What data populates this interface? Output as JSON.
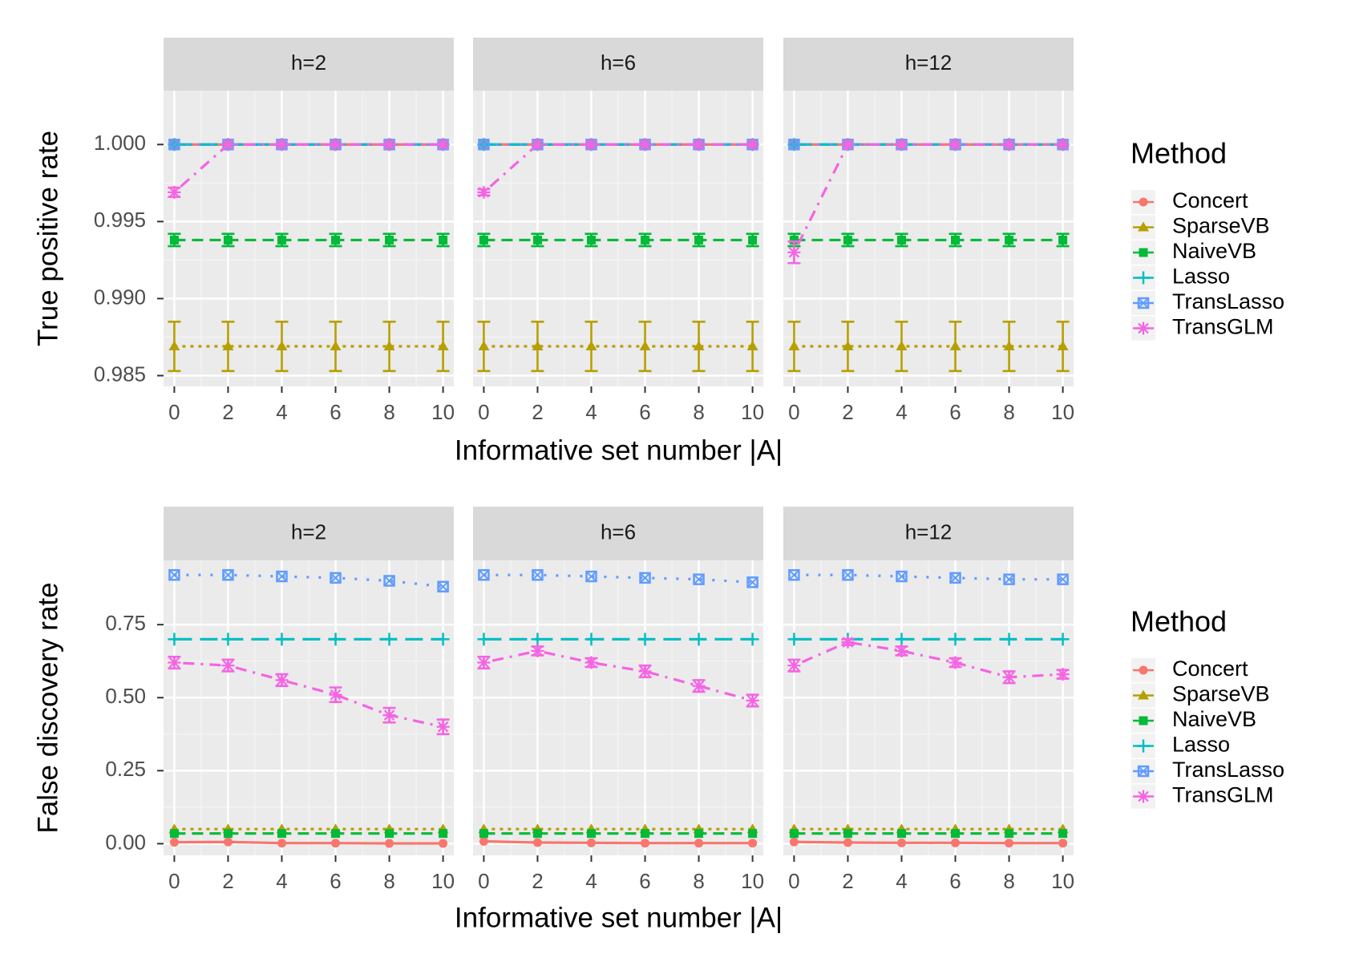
{
  "chart_data": {
    "type": "line",
    "x": [
      0,
      2,
      4,
      6,
      8,
      10
    ],
    "xticks": [
      "0",
      "2",
      "4",
      "6",
      "8",
      "10"
    ],
    "xlabel": "Informative set number |A|",
    "facets": [
      "h=2",
      "h=6",
      "h=12"
    ],
    "methods": [
      {
        "name": "Concert",
        "color": "#F8766D",
        "shape": "circle",
        "dash": "solid"
      },
      {
        "name": "SparseVB",
        "color": "#B79F00",
        "shape": "triangle",
        "dash": "dotted"
      },
      {
        "name": "NaiveVB",
        "color": "#00BA38",
        "shape": "square",
        "dash": "dashed"
      },
      {
        "name": "Lasso",
        "color": "#00BFC4",
        "shape": "plus",
        "dash": "longdash"
      },
      {
        "name": "TransLasso",
        "color": "#619CFF",
        "shape": "boxx",
        "dash": "dotted-wide"
      },
      {
        "name": "TransGLM",
        "color": "#F564E3",
        "shape": "asterisk",
        "dash": "dotdash"
      }
    ],
    "panels": [
      {
        "ylabel": "True positive rate",
        "ylim": [
          0.9843,
          1.0035
        ],
        "yticks": [
          0.985,
          0.99,
          0.995,
          1.0
        ],
        "yticklabels": [
          "0.985",
          "0.990",
          "0.995",
          "1.000"
        ],
        "legend_title": "Method",
        "facet_series": [
          {
            "facet": "h=2",
            "series": [
              {
                "method": "Concert",
                "values": [
                  1.0,
                  1.0,
                  1.0,
                  1.0,
                  1.0,
                  1.0
                ]
              },
              {
                "method": "SparseVB",
                "values": [
                  0.9869,
                  0.9869,
                  0.9869,
                  0.9869,
                  0.9869,
                  0.9869
                ],
                "err": [
                  0.0016,
                  0.0016,
                  0.0016,
                  0.0016,
                  0.0016,
                  0.0016
                ]
              },
              {
                "method": "NaiveVB",
                "values": [
                  0.9938,
                  0.9938,
                  0.9938,
                  0.9938,
                  0.9938,
                  0.9938
                ],
                "err": [
                  0.0004,
                  0.0004,
                  0.0004,
                  0.0004,
                  0.0004,
                  0.0004
                ]
              },
              {
                "method": "Lasso",
                "values": [
                  1.0,
                  1.0,
                  1.0,
                  1.0,
                  1.0,
                  1.0
                ]
              },
              {
                "method": "TransLasso",
                "values": [
                  1.0,
                  1.0,
                  1.0,
                  1.0,
                  1.0,
                  1.0
                ]
              },
              {
                "method": "TransGLM",
                "values": [
                  0.9969,
                  1.0,
                  1.0,
                  1.0,
                  1.0,
                  1.0
                ],
                "err": [
                  0.0003,
                  0,
                  0,
                  0,
                  0,
                  0
                ]
              }
            ]
          },
          {
            "facet": "h=6",
            "series": [
              {
                "method": "Concert",
                "values": [
                  1.0,
                  1.0,
                  1.0,
                  1.0,
                  1.0,
                  1.0
                ]
              },
              {
                "method": "SparseVB",
                "values": [
                  0.9869,
                  0.9869,
                  0.9869,
                  0.9869,
                  0.9869,
                  0.9869
                ],
                "err": [
                  0.0016,
                  0.0016,
                  0.0016,
                  0.0016,
                  0.0016,
                  0.0016
                ]
              },
              {
                "method": "NaiveVB",
                "values": [
                  0.9938,
                  0.9938,
                  0.9938,
                  0.9938,
                  0.9938,
                  0.9938
                ],
                "err": [
                  0.0004,
                  0.0004,
                  0.0004,
                  0.0004,
                  0.0004,
                  0.0004
                ]
              },
              {
                "method": "Lasso",
                "values": [
                  1.0,
                  1.0,
                  1.0,
                  1.0,
                  1.0,
                  1.0
                ]
              },
              {
                "method": "TransLasso",
                "values": [
                  1.0,
                  1.0,
                  1.0,
                  1.0,
                  1.0,
                  1.0
                ]
              },
              {
                "method": "TransGLM",
                "values": [
                  0.9969,
                  1.0,
                  1.0,
                  1.0,
                  1.0,
                  1.0
                ],
                "err": [
                  0.0002,
                  0,
                  0,
                  0,
                  0,
                  0
                ]
              }
            ]
          },
          {
            "facet": "h=12",
            "series": [
              {
                "method": "Concert",
                "values": [
                  1.0,
                  1.0,
                  1.0,
                  1.0,
                  1.0,
                  1.0
                ]
              },
              {
                "method": "SparseVB",
                "values": [
                  0.9869,
                  0.9869,
                  0.9869,
                  0.9869,
                  0.9869,
                  0.9869
                ],
                "err": [
                  0.0016,
                  0.0016,
                  0.0016,
                  0.0016,
                  0.0016,
                  0.0016
                ]
              },
              {
                "method": "NaiveVB",
                "values": [
                  0.9938,
                  0.9938,
                  0.9938,
                  0.9938,
                  0.9938,
                  0.9938
                ],
                "err": [
                  0.0004,
                  0.0004,
                  0.0004,
                  0.0004,
                  0.0004,
                  0.0004
                ]
              },
              {
                "method": "Lasso",
                "values": [
                  1.0,
                  1.0,
                  1.0,
                  1.0,
                  1.0,
                  1.0
                ]
              },
              {
                "method": "TransLasso",
                "values": [
                  1.0,
                  1.0,
                  1.0,
                  1.0,
                  1.0,
                  1.0
                ]
              },
              {
                "method": "TransGLM",
                "values": [
                  0.993,
                  1.0,
                  1.0,
                  1.0,
                  1.0,
                  1.0
                ],
                "err": [
                  0.0007,
                  0,
                  0,
                  0,
                  0,
                  0
                ]
              }
            ]
          }
        ]
      },
      {
        "ylabel": "False discovery rate",
        "ylim": [
          -0.04,
          0.97
        ],
        "yticks": [
          0.0,
          0.25,
          0.5,
          0.75
        ],
        "yticklabels": [
          "0.00",
          "0.25",
          "0.50",
          "0.75"
        ],
        "legend_title": "Method",
        "facet_series": [
          {
            "facet": "h=2",
            "series": [
              {
                "method": "Concert",
                "values": [
                  0.005,
                  0.006,
                  0.002,
                  0.002,
                  0.001,
                  0.001
                ]
              },
              {
                "method": "SparseVB",
                "values": [
                  0.05,
                  0.05,
                  0.05,
                  0.05,
                  0.05,
                  0.05
                ]
              },
              {
                "method": "NaiveVB",
                "values": [
                  0.035,
                  0.035,
                  0.035,
                  0.035,
                  0.035,
                  0.035
                ]
              },
              {
                "method": "Lasso",
                "values": [
                  0.7,
                  0.7,
                  0.7,
                  0.7,
                  0.7,
                  0.7
                ]
              },
              {
                "method": "TransLasso",
                "values": [
                  0.92,
                  0.92,
                  0.915,
                  0.91,
                  0.9,
                  0.88
                ]
              },
              {
                "method": "TransGLM",
                "values": [
                  0.62,
                  0.61,
                  0.56,
                  0.51,
                  0.44,
                  0.4
                ],
                "err": [
                  0.02,
                  0.02,
                  0.02,
                  0.025,
                  0.025,
                  0.025
                ]
              }
            ]
          },
          {
            "facet": "h=6",
            "series": [
              {
                "method": "Concert",
                "values": [
                  0.008,
                  0.004,
                  0.003,
                  0.002,
                  0.002,
                  0.002
                ]
              },
              {
                "method": "SparseVB",
                "values": [
                  0.05,
                  0.05,
                  0.05,
                  0.05,
                  0.05,
                  0.05
                ]
              },
              {
                "method": "NaiveVB",
                "values": [
                  0.035,
                  0.035,
                  0.035,
                  0.035,
                  0.035,
                  0.035
                ]
              },
              {
                "method": "Lasso",
                "values": [
                  0.7,
                  0.7,
                  0.7,
                  0.7,
                  0.7,
                  0.7
                ]
              },
              {
                "method": "TransLasso",
                "values": [
                  0.92,
                  0.92,
                  0.915,
                  0.91,
                  0.905,
                  0.895
                ]
              },
              {
                "method": "TransGLM",
                "values": [
                  0.62,
                  0.66,
                  0.62,
                  0.59,
                  0.54,
                  0.49
                ],
                "err": [
                  0.02,
                  0.015,
                  0.015,
                  0.02,
                  0.02,
                  0.02
                ]
              }
            ]
          },
          {
            "facet": "h=12",
            "series": [
              {
                "method": "Concert",
                "values": [
                  0.006,
                  0.004,
                  0.003,
                  0.003,
                  0.002,
                  0.002
                ]
              },
              {
                "method": "SparseVB",
                "values": [
                  0.05,
                  0.05,
                  0.05,
                  0.05,
                  0.05,
                  0.05
                ]
              },
              {
                "method": "NaiveVB",
                "values": [
                  0.035,
                  0.035,
                  0.035,
                  0.035,
                  0.035,
                  0.035
                ]
              },
              {
                "method": "Lasso",
                "values": [
                  0.7,
                  0.7,
                  0.7,
                  0.7,
                  0.7,
                  0.7
                ]
              },
              {
                "method": "TransLasso",
                "values": [
                  0.92,
                  0.92,
                  0.915,
                  0.91,
                  0.905,
                  0.905
                ]
              },
              {
                "method": "TransGLM",
                "values": [
                  0.61,
                  0.69,
                  0.66,
                  0.62,
                  0.57,
                  0.58
                ],
                "err": [
                  0.02,
                  0.01,
                  0.015,
                  0.015,
                  0.02,
                  0.015
                ]
              }
            ]
          }
        ]
      }
    ]
  }
}
